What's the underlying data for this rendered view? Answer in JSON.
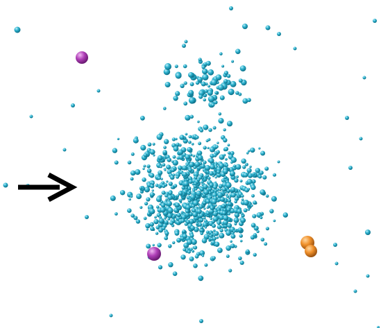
{
  "image": {
    "background": "#ffffff",
    "arrow": {
      "icon": "right-arrow-icon",
      "color": "#000000"
    },
    "cluster": {
      "particle_color": "#2fb3cf",
      "particle_highlight": "#bff0fb",
      "particle_shadow": "#0b6f88"
    },
    "highlighted_particles": [
      {
        "name": "magenta-particle-upper-left",
        "color": "#b040b8"
      },
      {
        "name": "magenta-particle-lower-center",
        "color": "#b040b8"
      },
      {
        "name": "orange-particle-pair",
        "color": "#f0902a"
      }
    ]
  }
}
